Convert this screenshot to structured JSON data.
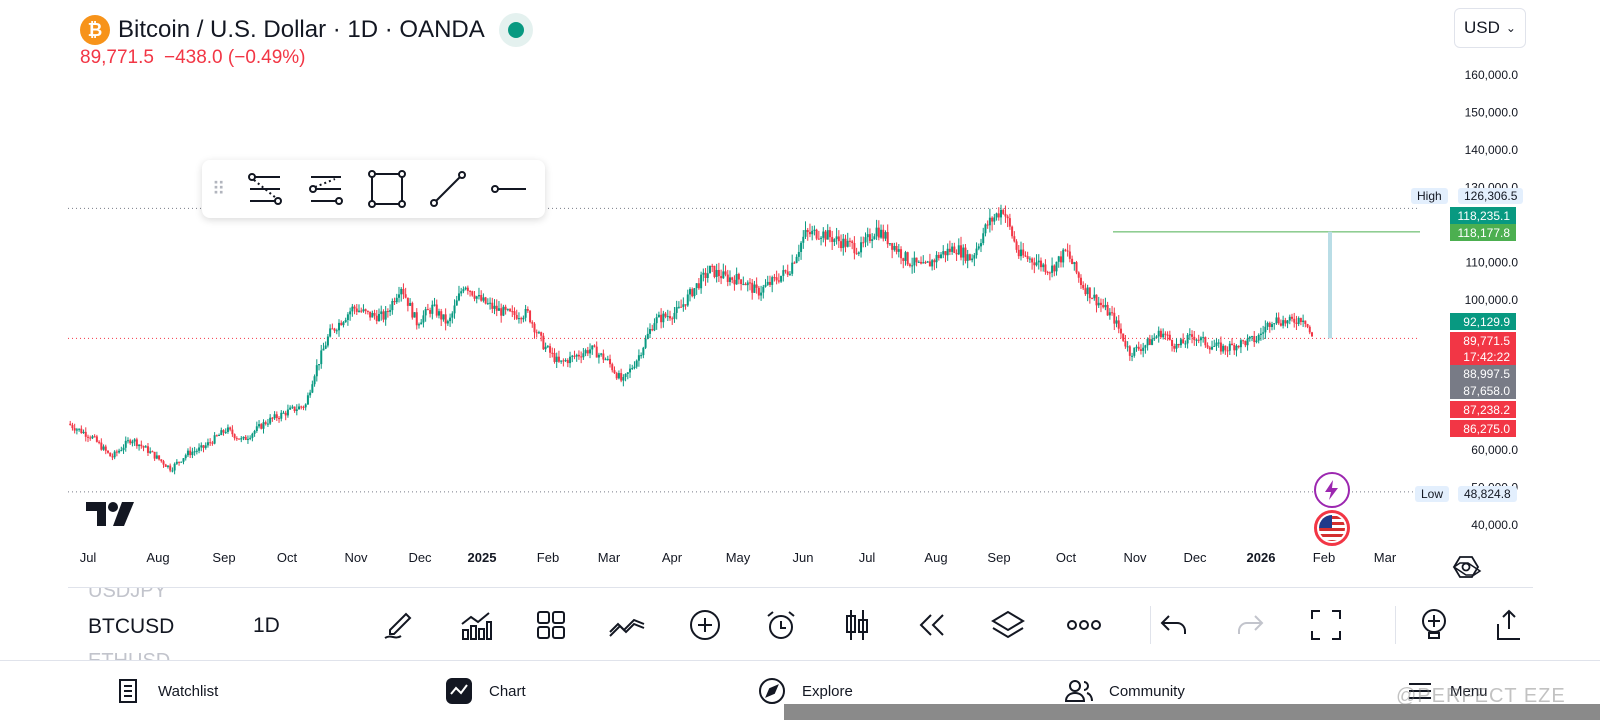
{
  "header": {
    "coin_symbol": "₿",
    "title": "Bitcoin / U.S. Dollar · 1D · OANDA",
    "price": "89,771.5",
    "change": "−438.0 (−0.49%)",
    "market_status_color": "#089981"
  },
  "currency_select": {
    "value": "USD"
  },
  "price_scale": {
    "ticks": [
      "160,000.0",
      "150,000.0",
      "140,000.0",
      "130,000.0",
      "110,000.0",
      "100,000.0",
      "60,000.0",
      "50,000.0",
      "40,000.0"
    ],
    "high_label": "High",
    "high_value": "126,306.5",
    "low_label": "Low",
    "low_value": "48,824.8",
    "tags": [
      {
        "text": "118,235.1",
        "color": "#089981"
      },
      {
        "text": "118,177.8",
        "color": "#4caf50"
      },
      {
        "text": "92,129.9",
        "color": "#089981"
      },
      {
        "text": "89,771.5",
        "color": "#f23645"
      },
      {
        "text": "17:42:22",
        "color": "#f23645"
      },
      {
        "text": "88,997.5",
        "color": "#787b86"
      },
      {
        "text": "87,658.0",
        "color": "#787b86"
      },
      {
        "text": "87,238.2",
        "color": "#f23645"
      },
      {
        "text": "86,275.0",
        "color": "#f23645"
      }
    ]
  },
  "time_axis": {
    "labels": [
      "Jul",
      "Aug",
      "Sep",
      "Oct",
      "Nov",
      "Dec",
      "2025",
      "Feb",
      "Mar",
      "Apr",
      "May",
      "Jun",
      "Jul",
      "Aug",
      "Sep",
      "Oct",
      "Nov",
      "Dec",
      "2026",
      "Feb",
      "Mar"
    ],
    "bold": [
      "2025",
      "2026"
    ]
  },
  "chart_data": {
    "type": "candlestick",
    "symbol": "BTCUSD",
    "interval": "1D",
    "x": [
      "2024-07",
      "2024-08",
      "2024-09",
      "2024-10",
      "2024-11",
      "2024-12",
      "2025-01",
      "2025-02",
      "2025-03",
      "2025-04",
      "2025-05",
      "2025-06",
      "2025-07",
      "2025-08",
      "2025-09",
      "2025-10",
      "2025-11",
      "2025-12",
      "2026-01"
    ],
    "close_path": [
      [
        0,
        67000
      ],
      [
        0.03,
        63500
      ],
      [
        0.055,
        58000
      ],
      [
        0.08,
        63000
      ],
      [
        0.1,
        60000
      ],
      [
        0.13,
        55000
      ],
      [
        0.15,
        59000
      ],
      [
        0.17,
        60500
      ],
      [
        0.2,
        65500
      ],
      [
        0.22,
        62500
      ],
      [
        0.25,
        67500
      ],
      [
        0.28,
        70500
      ],
      [
        0.3,
        72000
      ],
      [
        0.31,
        80000
      ],
      [
        0.33,
        91000
      ],
      [
        0.36,
        98000
      ],
      [
        0.38,
        96000
      ],
      [
        0.4,
        95500
      ],
      [
        0.42,
        104000
      ],
      [
        0.44,
        94000
      ],
      [
        0.46,
        98000
      ],
      [
        0.48,
        93500
      ],
      [
        0.5,
        104500
      ],
      [
        0.52,
        100000
      ],
      [
        0.54,
        97500
      ],
      [
        0.56,
        96000
      ],
      [
        0.58,
        96500
      ],
      [
        0.6,
        88000
      ],
      [
        0.62,
        83000
      ],
      [
        0.64,
        85000
      ],
      [
        0.66,
        87000
      ],
      [
        0.68,
        84000
      ],
      [
        0.7,
        78000
      ],
      [
        0.72,
        85000
      ],
      [
        0.74,
        94500
      ],
      [
        0.77,
        97000
      ],
      [
        0.79,
        103000
      ],
      [
        0.81,
        108000
      ],
      [
        0.83,
        106000
      ],
      [
        0.85,
        105500
      ],
      [
        0.87,
        102000
      ],
      [
        0.89,
        105000
      ],
      [
        0.91,
        108000
      ],
      [
        0.93,
        117500
      ],
      [
        0.95,
        118000
      ],
      [
        0.97,
        116000
      ],
      [
        1.0,
        113500
      ],
      [
        1.02,
        119000
      ],
      [
        1.04,
        115000
      ],
      [
        1.06,
        110500
      ],
      [
        1.08,
        108500
      ],
      [
        1.1,
        112000
      ],
      [
        1.12,
        114000
      ],
      [
        1.14,
        111000
      ],
      [
        1.16,
        120000
      ],
      [
        1.18,
        124500
      ],
      [
        1.2,
        112000
      ],
      [
        1.22,
        110500
      ],
      [
        1.24,
        108000
      ],
      [
        1.26,
        113000
      ],
      [
        1.28,
        104000
      ],
      [
        1.3,
        99500
      ],
      [
        1.32,
        95000
      ],
      [
        1.34,
        86000
      ],
      [
        1.36,
        88000
      ],
      [
        1.38,
        91500
      ],
      [
        1.4,
        87500
      ],
      [
        1.42,
        90500
      ],
      [
        1.44,
        88000
      ],
      [
        1.46,
        87000
      ],
      [
        1.48,
        88500
      ],
      [
        1.5,
        89500
      ],
      [
        1.52,
        95000
      ],
      [
        1.54,
        94000
      ],
      [
        1.56,
        95500
      ],
      [
        1.57,
        89771.5
      ]
    ],
    "y_axis_range": [
      40000,
      160000
    ],
    "high": 126306.5,
    "low": 48824.8,
    "last_price": 89771.5,
    "horizontal_line": 118177.8
  },
  "draw_toolbar": {
    "tools": [
      "fib-retracement-icon",
      "fib-extension-icon",
      "rectangle-icon",
      "trend-line-icon",
      "horizontal-ray-icon"
    ]
  },
  "bottom_toolbar": {
    "symbol_prev": "USDJPY",
    "symbol_current": "BTCUSD",
    "symbol_next": "ETHUSD",
    "interval": "1D"
  },
  "nav": {
    "watchlist": "Watchlist",
    "chart": "Chart",
    "explore": "Explore",
    "community": "Community",
    "menu": "Menu"
  },
  "watermark": "@PERFECT EZE"
}
